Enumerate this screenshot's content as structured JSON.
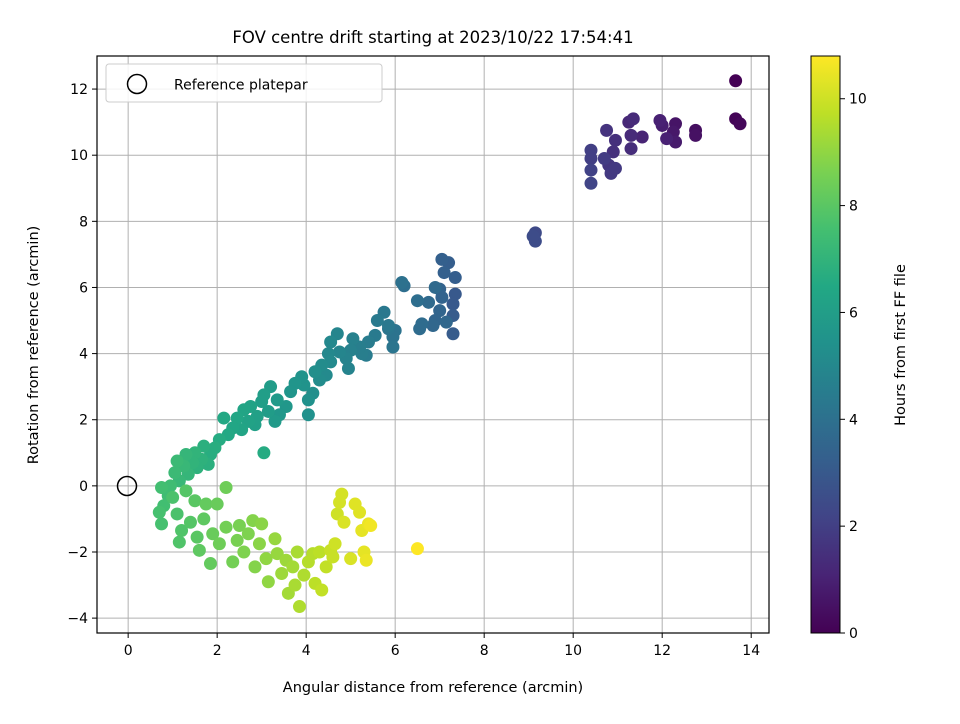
{
  "chart_data": {
    "type": "scatter",
    "title": "FOV centre drift starting at 2023/10/22 17:54:41",
    "xlabel": "Angular distance from reference (arcmin)",
    "ylabel": "Rotation from reference (arcmin)",
    "xlim": [
      -0.7,
      14.4
    ],
    "ylim": [
      -4.45,
      13.0
    ],
    "xticks": [
      0,
      2,
      4,
      6,
      8,
      10,
      12,
      14
    ],
    "yticks": [
      -4,
      -2,
      0,
      2,
      4,
      6,
      8,
      10,
      12
    ],
    "grid": true,
    "legend": {
      "position": "top-left",
      "entries": [
        "Reference platepar"
      ]
    },
    "reference_point": {
      "x": 0,
      "y": 0,
      "label": "Reference platepar"
    },
    "colorbar": {
      "label": "Hours from first FF file",
      "colormap": "viridis",
      "range": [
        0,
        10.8
      ],
      "ticks": [
        0,
        2,
        4,
        6,
        8,
        10
      ]
    },
    "points": [
      [
        13.65,
        12.25,
        0.0
      ],
      [
        13.65,
        11.1,
        0.1
      ],
      [
        13.75,
        10.95,
        0.2
      ],
      [
        12.75,
        10.75,
        0.4
      ],
      [
        12.75,
        10.6,
        0.5
      ],
      [
        12.3,
        10.95,
        0.6
      ],
      [
        12.25,
        10.7,
        0.7
      ],
      [
        12.3,
        10.4,
        0.8
      ],
      [
        12.0,
        10.9,
        0.9
      ],
      [
        11.95,
        11.05,
        1.0
      ],
      [
        12.1,
        10.5,
        1.0
      ],
      [
        11.55,
        10.55,
        1.1
      ],
      [
        11.25,
        11.0,
        1.2
      ],
      [
        11.3,
        10.6,
        1.3
      ],
      [
        11.35,
        11.1,
        1.3
      ],
      [
        11.3,
        10.2,
        1.4
      ],
      [
        10.95,
        10.45,
        1.5
      ],
      [
        10.9,
        10.1,
        1.5
      ],
      [
        10.75,
        10.75,
        1.6
      ],
      [
        10.8,
        9.7,
        1.7
      ],
      [
        10.85,
        9.45,
        1.8
      ],
      [
        10.95,
        9.6,
        1.8
      ],
      [
        10.7,
        9.9,
        1.9
      ],
      [
        10.4,
        10.15,
        2.0
      ],
      [
        10.4,
        9.9,
        2.0
      ],
      [
        10.4,
        9.55,
        2.1
      ],
      [
        10.4,
        9.15,
        2.2
      ],
      [
        9.15,
        7.65,
        2.4
      ],
      [
        9.15,
        7.4,
        2.5
      ],
      [
        9.1,
        7.55,
        2.5
      ],
      [
        7.35,
        5.8,
        3.0
      ],
      [
        7.3,
        5.5,
        3.0
      ],
      [
        7.3,
        5.15,
        3.1
      ],
      [
        7.3,
        4.6,
        3.1
      ],
      [
        7.35,
        6.3,
        3.2
      ],
      [
        7.2,
        6.75,
        3.2
      ],
      [
        7.05,
        6.85,
        3.3
      ],
      [
        7.1,
        6.45,
        3.3
      ],
      [
        7.0,
        5.95,
        3.4
      ],
      [
        7.05,
        5.7,
        3.4
      ],
      [
        7.0,
        5.3,
        3.5
      ],
      [
        6.9,
        5.0,
        3.5
      ],
      [
        7.15,
        4.95,
        3.6
      ],
      [
        6.85,
        4.85,
        3.6
      ],
      [
        6.75,
        5.55,
        3.7
      ],
      [
        6.9,
        6.0,
        3.7
      ],
      [
        6.6,
        4.9,
        3.8
      ],
      [
        6.55,
        4.75,
        3.8
      ],
      [
        6.5,
        5.6,
        3.9
      ],
      [
        6.2,
        6.05,
        3.9
      ],
      [
        6.15,
        6.15,
        4.0
      ],
      [
        6.0,
        4.7,
        4.1
      ],
      [
        5.95,
        4.5,
        4.1
      ],
      [
        5.95,
        4.2,
        4.2
      ],
      [
        5.85,
        4.75,
        4.2
      ],
      [
        5.85,
        4.85,
        4.3
      ],
      [
        5.75,
        5.25,
        4.3
      ],
      [
        5.6,
        5.0,
        4.4
      ],
      [
        5.55,
        4.55,
        4.4
      ],
      [
        5.4,
        4.35,
        4.5
      ],
      [
        5.35,
        3.95,
        4.5
      ],
      [
        5.25,
        4.0,
        4.6
      ],
      [
        5.2,
        4.2,
        4.6
      ],
      [
        5.05,
        4.45,
        4.7
      ],
      [
        5.0,
        4.1,
        4.7
      ],
      [
        4.95,
        3.55,
        4.8
      ],
      [
        4.9,
        3.85,
        4.8
      ],
      [
        4.75,
        4.05,
        4.9
      ],
      [
        4.7,
        4.6,
        4.9
      ],
      [
        4.55,
        4.35,
        5.0
      ],
      [
        4.5,
        4.0,
        5.0
      ],
      [
        4.55,
        3.75,
        5.1
      ],
      [
        4.45,
        3.35,
        5.1
      ],
      [
        4.35,
        3.65,
        5.2
      ],
      [
        4.3,
        3.2,
        5.2
      ],
      [
        4.2,
        3.45,
        5.3
      ],
      [
        4.15,
        2.8,
        5.3
      ],
      [
        4.05,
        2.15,
        5.4
      ],
      [
        4.05,
        2.6,
        5.4
      ],
      [
        3.95,
        3.05,
        5.5
      ],
      [
        3.9,
        3.3,
        5.5
      ],
      [
        3.75,
        3.1,
        5.6
      ],
      [
        3.65,
        2.85,
        5.6
      ],
      [
        3.55,
        2.4,
        5.7
      ],
      [
        3.4,
        2.15,
        5.7
      ],
      [
        3.35,
        2.6,
        5.8
      ],
      [
        3.3,
        1.95,
        5.8
      ],
      [
        3.2,
        3.0,
        5.9
      ],
      [
        3.15,
        2.25,
        5.9
      ],
      [
        3.05,
        2.75,
        6.0
      ],
      [
        3.0,
        2.55,
        6.0
      ],
      [
        2.9,
        2.1,
        6.1
      ],
      [
        2.85,
        1.85,
        6.1
      ],
      [
        2.75,
        2.4,
        6.2
      ],
      [
        2.7,
        1.95,
        6.2
      ],
      [
        2.6,
        2.3,
        6.3
      ],
      [
        2.55,
        1.7,
        6.3
      ],
      [
        2.45,
        2.05,
        6.4
      ],
      [
        2.35,
        1.75,
        6.4
      ],
      [
        2.25,
        1.55,
        6.5
      ],
      [
        2.15,
        2.05,
        6.5
      ],
      [
        2.05,
        1.4,
        6.6
      ],
      [
        3.05,
        1.0,
        6.6
      ],
      [
        1.95,
        1.15,
        6.7
      ],
      [
        1.85,
        0.95,
        6.7
      ],
      [
        1.8,
        0.65,
        6.8
      ],
      [
        1.7,
        1.2,
        6.8
      ],
      [
        1.65,
        0.8,
        6.9
      ],
      [
        1.55,
        0.55,
        6.9
      ],
      [
        1.5,
        1.0,
        7.0
      ],
      [
        1.45,
        0.7,
        7.0
      ],
      [
        1.35,
        0.35,
        7.1
      ],
      [
        1.3,
        0.95,
        7.1
      ],
      [
        1.25,
        0.6,
        7.2
      ],
      [
        1.15,
        0.15,
        7.2
      ],
      [
        1.1,
        0.75,
        7.3
      ],
      [
        1.05,
        0.4,
        7.3
      ],
      [
        0.95,
        0.0,
        7.4
      ],
      [
        0.9,
        -0.3,
        7.4
      ],
      [
        0.8,
        -0.6,
        7.5
      ],
      [
        0.75,
        -0.05,
        7.5
      ],
      [
        0.7,
        -0.8,
        7.6
      ],
      [
        0.75,
        -1.15,
        7.6
      ],
      [
        1.0,
        -0.35,
        7.7
      ],
      [
        1.1,
        -0.85,
        7.7
      ],
      [
        1.2,
        -1.35,
        7.8
      ],
      [
        1.15,
        -1.7,
        7.8
      ],
      [
        1.3,
        -0.15,
        7.9
      ],
      [
        1.4,
        -1.1,
        7.9
      ],
      [
        1.5,
        -0.45,
        8.0
      ],
      [
        1.55,
        -1.55,
        8.0
      ],
      [
        1.6,
        -1.95,
        8.1
      ],
      [
        1.7,
        -1.0,
        8.1
      ],
      [
        1.75,
        -0.55,
        8.2
      ],
      [
        1.85,
        -2.35,
        8.2
      ],
      [
        1.9,
        -1.45,
        8.3
      ],
      [
        2.0,
        -0.55,
        8.3
      ],
      [
        2.05,
        -1.75,
        8.4
      ],
      [
        2.2,
        -0.05,
        8.4
      ],
      [
        2.2,
        -1.25,
        8.5
      ],
      [
        2.35,
        -2.3,
        8.5
      ],
      [
        2.45,
        -1.65,
        8.6
      ],
      [
        2.5,
        -1.2,
        8.6
      ],
      [
        2.6,
        -2.0,
        8.7
      ],
      [
        2.7,
        -1.45,
        8.7
      ],
      [
        2.8,
        -1.05,
        8.8
      ],
      [
        2.85,
        -2.45,
        8.8
      ],
      [
        2.95,
        -1.75,
        8.9
      ],
      [
        3.0,
        -1.15,
        8.9
      ],
      [
        3.1,
        -2.2,
        9.0
      ],
      [
        3.15,
        -2.9,
        9.0
      ],
      [
        3.3,
        -1.6,
        9.1
      ],
      [
        3.35,
        -2.05,
        9.1
      ],
      [
        3.45,
        -2.65,
        9.2
      ],
      [
        3.55,
        -2.25,
        9.2
      ],
      [
        3.6,
        -3.25,
        9.3
      ],
      [
        3.7,
        -2.45,
        9.3
      ],
      [
        3.75,
        -3.0,
        9.4
      ],
      [
        3.8,
        -2.0,
        9.4
      ],
      [
        3.85,
        -3.65,
        9.5
      ],
      [
        3.95,
        -2.7,
        9.5
      ],
      [
        4.05,
        -2.3,
        9.6
      ],
      [
        4.15,
        -2.05,
        9.6
      ],
      [
        4.2,
        -2.95,
        9.7
      ],
      [
        4.3,
        -2.0,
        9.7
      ],
      [
        4.35,
        -3.15,
        9.8
      ],
      [
        4.45,
        -2.45,
        9.8
      ],
      [
        4.55,
        -1.95,
        9.9
      ],
      [
        4.6,
        -2.15,
        9.9
      ],
      [
        4.65,
        -1.75,
        10.0
      ],
      [
        4.7,
        -0.85,
        10.0
      ],
      [
        4.75,
        -0.5,
        10.1
      ],
      [
        4.8,
        -0.25,
        10.1
      ],
      [
        4.85,
        -1.1,
        10.2
      ],
      [
        5.0,
        -2.2,
        10.2
      ],
      [
        5.1,
        -0.55,
        10.3
      ],
      [
        5.2,
        -0.8,
        10.3
      ],
      [
        5.25,
        -1.35,
        10.4
      ],
      [
        5.3,
        -2.0,
        10.4
      ],
      [
        5.35,
        -2.25,
        10.5
      ],
      [
        5.4,
        -1.15,
        10.5
      ],
      [
        5.45,
        -1.2,
        10.6
      ],
      [
        6.5,
        -1.9,
        10.8
      ]
    ]
  }
}
